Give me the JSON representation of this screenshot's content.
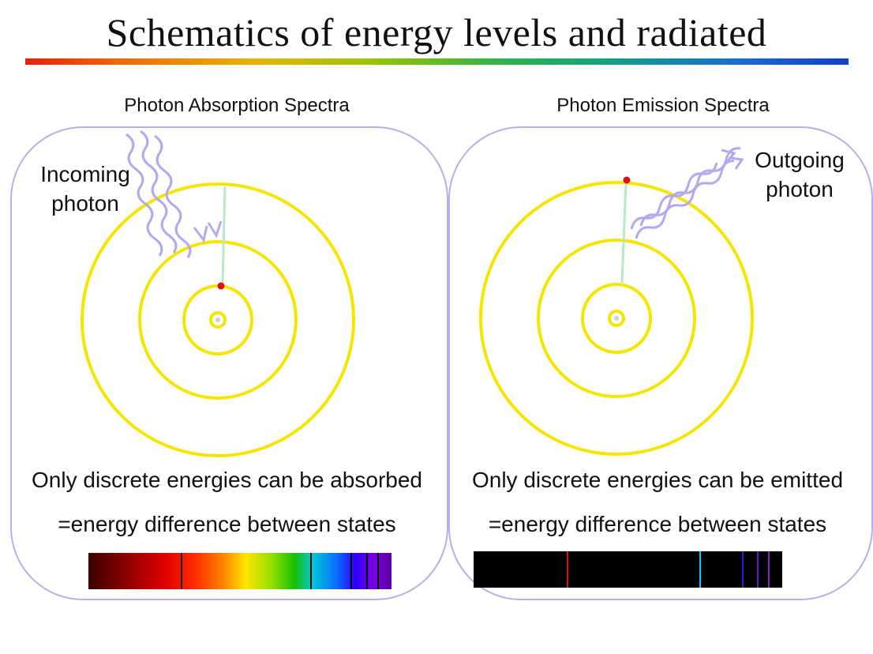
{
  "title": "Schematics of energy levels and radiated",
  "absorption": {
    "heading": "Photon Absorption Spectra",
    "photon_label_line1": "Incoming",
    "photon_label_line2": "photon",
    "caption_line1": "Only discrete energies can be absorbed",
    "caption_line2": "=energy difference between states",
    "spectrum_line_positions": [
      0.305,
      0.733,
      0.865,
      0.917,
      0.954
    ],
    "spectrum_line_color": "#000000"
  },
  "emission": {
    "heading": "Photon Emission Spectra",
    "photon_label_line1": "Outgoing",
    "photon_label_line2": "photon",
    "caption_line1": "Only discrete energies can be emitted",
    "caption_line2": "=energy difference between states",
    "spectrum_lines": [
      {
        "position": 0.302,
        "color": "#e01010"
      },
      {
        "position": 0.731,
        "color": "#10c8f0"
      },
      {
        "position": 0.87,
        "color": "#2020e0"
      },
      {
        "position": 0.919,
        "color": "#6a10d0"
      },
      {
        "position": 0.955,
        "color": "#8a20c0"
      }
    ]
  },
  "colors": {
    "orbit": "#f5e600",
    "electron": "#e01010",
    "transition_line": "#b8e8c8",
    "photon_wave": "#b6a8ee",
    "frame": "#b9aee6"
  }
}
